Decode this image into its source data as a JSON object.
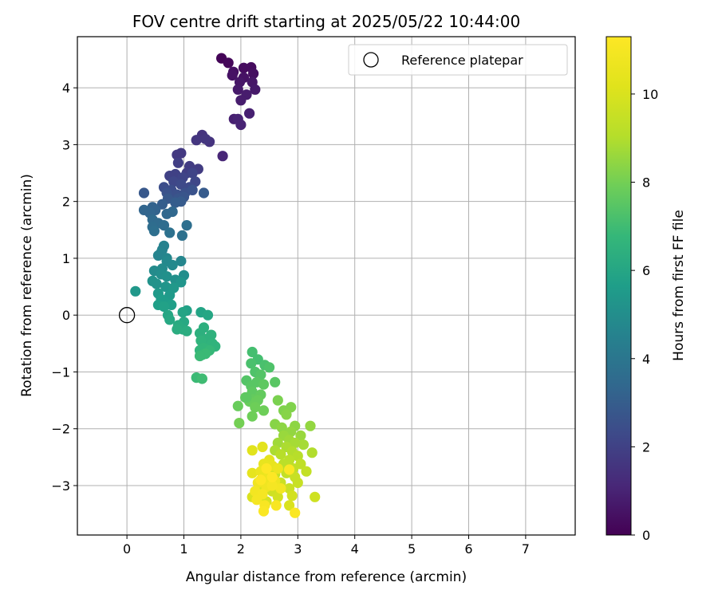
{
  "chart_data": {
    "type": "scatter",
    "title": "FOV centre drift starting at 2025/05/22 10:44:00",
    "xlabel": "Angular distance from reference (arcmin)",
    "ylabel": "Rotation from reference (arcmin)",
    "xlim": [
      -0.87,
      7.87
    ],
    "ylim": [
      -3.87,
      4.9
    ],
    "x_ticks": [
      0,
      1,
      2,
      3,
      4,
      5,
      6,
      7
    ],
    "x_tick_labels": [
      "0",
      "1",
      "2",
      "3",
      "4",
      "5",
      "6",
      "7"
    ],
    "y_ticks": [
      -3,
      -2,
      -1,
      0,
      1,
      2,
      3,
      4
    ],
    "y_tick_labels": [
      "−3",
      "−2",
      "−1",
      "0",
      "1",
      "2",
      "3",
      "4"
    ],
    "grid": true,
    "legend": {
      "position": "top-right",
      "entries": [
        "Reference platepar"
      ]
    },
    "reference": {
      "x": 0,
      "y": 0
    },
    "colorbar": {
      "label": "Hours from first FF file",
      "range": [
        0,
        11.3
      ],
      "ticks": [
        0,
        2,
        4,
        6,
        8,
        10
      ],
      "tick_labels": [
        "0",
        "2",
        "4",
        "6",
        "8",
        "10"
      ],
      "colormap": "viridis"
    },
    "points": [
      [
        1.66,
        4.52,
        0.1
      ],
      [
        1.78,
        4.44,
        0.2
      ],
      [
        2.05,
        4.35,
        0.3
      ],
      [
        2.18,
        4.36,
        0.3
      ],
      [
        1.87,
        4.28,
        0.4
      ],
      [
        2.22,
        4.25,
        0.4
      ],
      [
        1.85,
        4.22,
        0.5
      ],
      [
        2.05,
        4.18,
        0.5
      ],
      [
        1.98,
        4.1,
        0.6
      ],
      [
        2.2,
        4.1,
        0.6
      ],
      [
        1.95,
        3.97,
        0.7
      ],
      [
        2.25,
        3.97,
        0.7
      ],
      [
        2.1,
        3.88,
        0.8
      ],
      [
        2.0,
        3.78,
        0.8
      ],
      [
        2.15,
        3.55,
        0.9
      ],
      [
        1.88,
        3.45,
        0.9
      ],
      [
        1.95,
        3.45,
        1.0
      ],
      [
        2.0,
        3.35,
        1.0
      ],
      [
        1.68,
        2.8,
        1.1
      ],
      [
        1.32,
        3.17,
        1.5
      ],
      [
        1.45,
        3.05,
        1.5
      ],
      [
        1.38,
        3.1,
        1.6
      ],
      [
        1.22,
        3.08,
        1.6
      ],
      [
        0.88,
        2.82,
        1.7
      ],
      [
        0.95,
        2.85,
        1.7
      ],
      [
        1.1,
        2.62,
        1.8
      ],
      [
        1.25,
        2.57,
        1.8
      ],
      [
        0.9,
        2.68,
        1.9
      ],
      [
        1.05,
        2.5,
        1.9
      ],
      [
        0.75,
        2.45,
        2.0
      ],
      [
        0.85,
        2.48,
        2.0
      ],
      [
        0.98,
        2.42,
        2.1
      ],
      [
        1.15,
        2.5,
        2.1
      ],
      [
        1.2,
        2.35,
        2.2
      ],
      [
        0.82,
        2.35,
        2.2
      ],
      [
        0.95,
        2.3,
        2.3
      ],
      [
        1.1,
        2.25,
        2.3
      ],
      [
        0.65,
        2.25,
        2.4
      ],
      [
        0.78,
        2.2,
        2.4
      ],
      [
        0.88,
        2.12,
        2.5
      ],
      [
        1.02,
        2.15,
        2.5
      ],
      [
        1.15,
        2.2,
        2.6
      ],
      [
        0.7,
        2.15,
        2.6
      ],
      [
        0.9,
        2.05,
        2.7
      ],
      [
        1.0,
        2.08,
        2.7
      ],
      [
        0.3,
        2.15,
        2.8
      ],
      [
        0.72,
        2.05,
        2.8
      ],
      [
        0.95,
        2.0,
        2.9
      ],
      [
        1.35,
        2.15,
        2.9
      ],
      [
        0.85,
        1.98,
        3.0
      ],
      [
        0.62,
        1.95,
        3.0
      ],
      [
        0.45,
        1.9,
        3.2
      ],
      [
        0.5,
        1.85,
        3.2
      ],
      [
        0.3,
        1.85,
        3.3
      ],
      [
        0.4,
        1.8,
        3.3
      ],
      [
        0.8,
        1.82,
        3.4
      ],
      [
        0.7,
        1.78,
        3.4
      ],
      [
        0.45,
        1.68,
        3.5
      ],
      [
        0.55,
        1.62,
        3.5
      ],
      [
        0.65,
        1.58,
        3.6
      ],
      [
        0.45,
        1.55,
        3.6
      ],
      [
        1.05,
        1.58,
        3.7
      ],
      [
        0.48,
        1.48,
        3.7
      ],
      [
        0.75,
        1.45,
        3.8
      ],
      [
        0.97,
        1.4,
        3.8
      ],
      [
        0.65,
        1.22,
        4.5
      ],
      [
        0.62,
        1.15,
        4.5
      ],
      [
        0.6,
        1.1,
        4.6
      ],
      [
        0.55,
        1.05,
        4.6
      ],
      [
        0.7,
        1.0,
        4.7
      ],
      [
        0.95,
        0.95,
        4.7
      ],
      [
        0.7,
        0.95,
        4.8
      ],
      [
        0.8,
        0.88,
        4.8
      ],
      [
        0.62,
        0.82,
        4.9
      ],
      [
        0.48,
        0.78,
        4.9
      ],
      [
        0.6,
        0.72,
        5.0
      ],
      [
        1.0,
        0.7,
        5.0
      ],
      [
        0.7,
        0.68,
        5.1
      ],
      [
        0.85,
        0.62,
        5.1
      ],
      [
        0.45,
        0.6,
        5.2
      ],
      [
        0.52,
        0.55,
        5.2
      ],
      [
        0.95,
        0.58,
        5.3
      ],
      [
        0.68,
        0.5,
        5.3
      ],
      [
        0.82,
        0.48,
        5.4
      ],
      [
        0.15,
        0.42,
        5.4
      ],
      [
        0.55,
        0.38,
        5.5
      ],
      [
        0.75,
        0.35,
        5.5
      ],
      [
        0.6,
        0.28,
        5.6
      ],
      [
        0.68,
        0.22,
        5.6
      ],
      [
        0.55,
        0.18,
        5.7
      ],
      [
        0.78,
        0.18,
        5.7
      ],
      [
        0.65,
        0.15,
        5.8
      ],
      [
        1.05,
        0.08,
        5.8
      ],
      [
        0.98,
        0.05,
        5.9
      ],
      [
        1.3,
        0.05,
        5.9
      ],
      [
        1.42,
        0.0,
        6.0
      ],
      [
        0.72,
        0.0,
        6.0
      ],
      [
        0.75,
        -0.08,
        6.1
      ],
      [
        1.0,
        -0.12,
        6.1
      ],
      [
        0.9,
        -0.18,
        6.2
      ],
      [
        0.98,
        -0.25,
        6.2
      ],
      [
        1.05,
        -0.28,
        6.3
      ],
      [
        0.88,
        -0.25,
        6.3
      ],
      [
        1.35,
        -0.22,
        6.4
      ],
      [
        1.28,
        -0.32,
        6.4
      ],
      [
        1.48,
        -0.35,
        6.5
      ],
      [
        1.4,
        -0.42,
        6.5
      ],
      [
        1.3,
        -0.45,
        6.6
      ],
      [
        1.5,
        -0.5,
        6.6
      ],
      [
        1.55,
        -0.55,
        6.6
      ],
      [
        1.35,
        -0.58,
        6.7
      ],
      [
        1.28,
        -0.62,
        6.7
      ],
      [
        1.45,
        -0.62,
        6.8
      ],
      [
        1.32,
        -0.7,
        6.8
      ],
      [
        1.38,
        -0.68,
        6.9
      ],
      [
        1.28,
        -0.72,
        6.9
      ],
      [
        1.22,
        -1.1,
        6.9
      ],
      [
        1.32,
        -1.12,
        7.0
      ],
      [
        2.2,
        -0.65,
        7.1
      ],
      [
        2.3,
        -0.78,
        7.1
      ],
      [
        2.18,
        -0.85,
        7.2
      ],
      [
        2.42,
        -0.88,
        7.2
      ],
      [
        2.5,
        -0.92,
        7.3
      ],
      [
        2.25,
        -1.0,
        7.3
      ],
      [
        2.35,
        -1.05,
        7.4
      ],
      [
        2.1,
        -1.15,
        7.4
      ],
      [
        2.28,
        -1.18,
        7.5
      ],
      [
        2.18,
        -1.25,
        7.5
      ],
      [
        2.6,
        -1.18,
        7.5
      ],
      [
        2.4,
        -1.22,
        7.6
      ],
      [
        2.2,
        -1.35,
        7.6
      ],
      [
        2.35,
        -1.4,
        7.7
      ],
      [
        2.22,
        -1.48,
        7.7
      ],
      [
        2.08,
        -1.45,
        7.7
      ],
      [
        2.15,
        -1.52,
        7.8
      ],
      [
        2.3,
        -1.5,
        7.8
      ],
      [
        1.95,
        -1.6,
        7.8
      ],
      [
        2.25,
        -1.62,
        7.9
      ],
      [
        2.4,
        -1.68,
        7.9
      ],
      [
        2.2,
        -1.78,
        7.9
      ],
      [
        1.97,
        -1.9,
        8.0
      ],
      [
        2.1,
        -1.45,
        7.6
      ],
      [
        2.65,
        -1.5,
        8.1
      ],
      [
        2.75,
        -1.68,
        8.2
      ],
      [
        2.88,
        -1.62,
        8.2
      ],
      [
        2.8,
        -1.75,
        8.3
      ],
      [
        2.6,
        -1.92,
        8.3
      ],
      [
        2.72,
        -1.98,
        8.4
      ],
      [
        2.95,
        -1.95,
        8.4
      ],
      [
        3.22,
        -1.95,
        8.5
      ],
      [
        2.88,
        -2.05,
        8.5
      ],
      [
        2.75,
        -2.12,
        8.6
      ],
      [
        3.05,
        -2.12,
        8.6
      ],
      [
        2.85,
        -2.2,
        8.7
      ],
      [
        2.65,
        -2.25,
        8.7
      ],
      [
        2.95,
        -2.25,
        8.8
      ],
      [
        3.1,
        -2.28,
        8.8
      ],
      [
        2.8,
        -2.32,
        8.9
      ],
      [
        2.6,
        -2.38,
        8.9
      ],
      [
        2.9,
        -2.4,
        9.0
      ],
      [
        3.25,
        -2.42,
        9.0
      ],
      [
        2.7,
        -2.45,
        9.1
      ],
      [
        3.0,
        -2.48,
        9.1
      ],
      [
        2.85,
        -2.55,
        9.2
      ],
      [
        2.75,
        -2.62,
        9.2
      ],
      [
        3.05,
        -2.62,
        9.3
      ],
      [
        2.92,
        -2.7,
        9.3
      ],
      [
        3.15,
        -2.75,
        9.4
      ],
      [
        2.8,
        -2.78,
        9.4
      ],
      [
        2.6,
        -2.8,
        9.5
      ],
      [
        2.95,
        -2.85,
        9.5
      ],
      [
        3.0,
        -2.95,
        9.5
      ],
      [
        2.7,
        -2.95,
        9.6
      ],
      [
        2.85,
        -3.05,
        9.6
      ],
      [
        2.55,
        -3.1,
        9.7
      ],
      [
        3.3,
        -3.2,
        9.7
      ],
      [
        2.9,
        -3.18,
        9.8
      ],
      [
        2.65,
        -3.2,
        9.8
      ],
      [
        2.45,
        -3.28,
        9.9
      ],
      [
        2.32,
        -3.1,
        9.9
      ],
      [
        2.2,
        -3.2,
        10.0
      ],
      [
        2.85,
        -3.35,
        10.0
      ],
      [
        2.2,
        -2.38,
        10.2
      ],
      [
        2.38,
        -2.32,
        10.3
      ],
      [
        2.5,
        -2.55,
        10.4
      ],
      [
        2.2,
        -2.78,
        10.4
      ],
      [
        2.4,
        -2.62,
        10.5
      ],
      [
        2.55,
        -2.65,
        10.5
      ],
      [
        2.65,
        -2.7,
        10.6
      ],
      [
        2.35,
        -2.75,
        10.6
      ],
      [
        2.48,
        -2.85,
        10.7
      ],
      [
        2.6,
        -2.92,
        10.7
      ],
      [
        2.3,
        -2.95,
        10.8
      ],
      [
        2.45,
        -3.02,
        10.8
      ],
      [
        2.7,
        -3.05,
        10.9
      ],
      [
        2.25,
        -3.1,
        10.9
      ],
      [
        2.38,
        -3.15,
        11.0
      ],
      [
        2.55,
        -3.0,
        11.0
      ],
      [
        2.28,
        -3.25,
        11.0
      ],
      [
        2.42,
        -3.35,
        11.1
      ],
      [
        2.62,
        -3.35,
        11.1
      ],
      [
        2.4,
        -3.45,
        11.2
      ],
      [
        2.95,
        -3.48,
        11.2
      ],
      [
        2.85,
        -2.72,
        11.2
      ],
      [
        2.45,
        -2.7,
        11.3
      ],
      [
        2.35,
        -2.9,
        11.3
      ],
      [
        2.55,
        -2.85,
        11.3
      ]
    ]
  }
}
